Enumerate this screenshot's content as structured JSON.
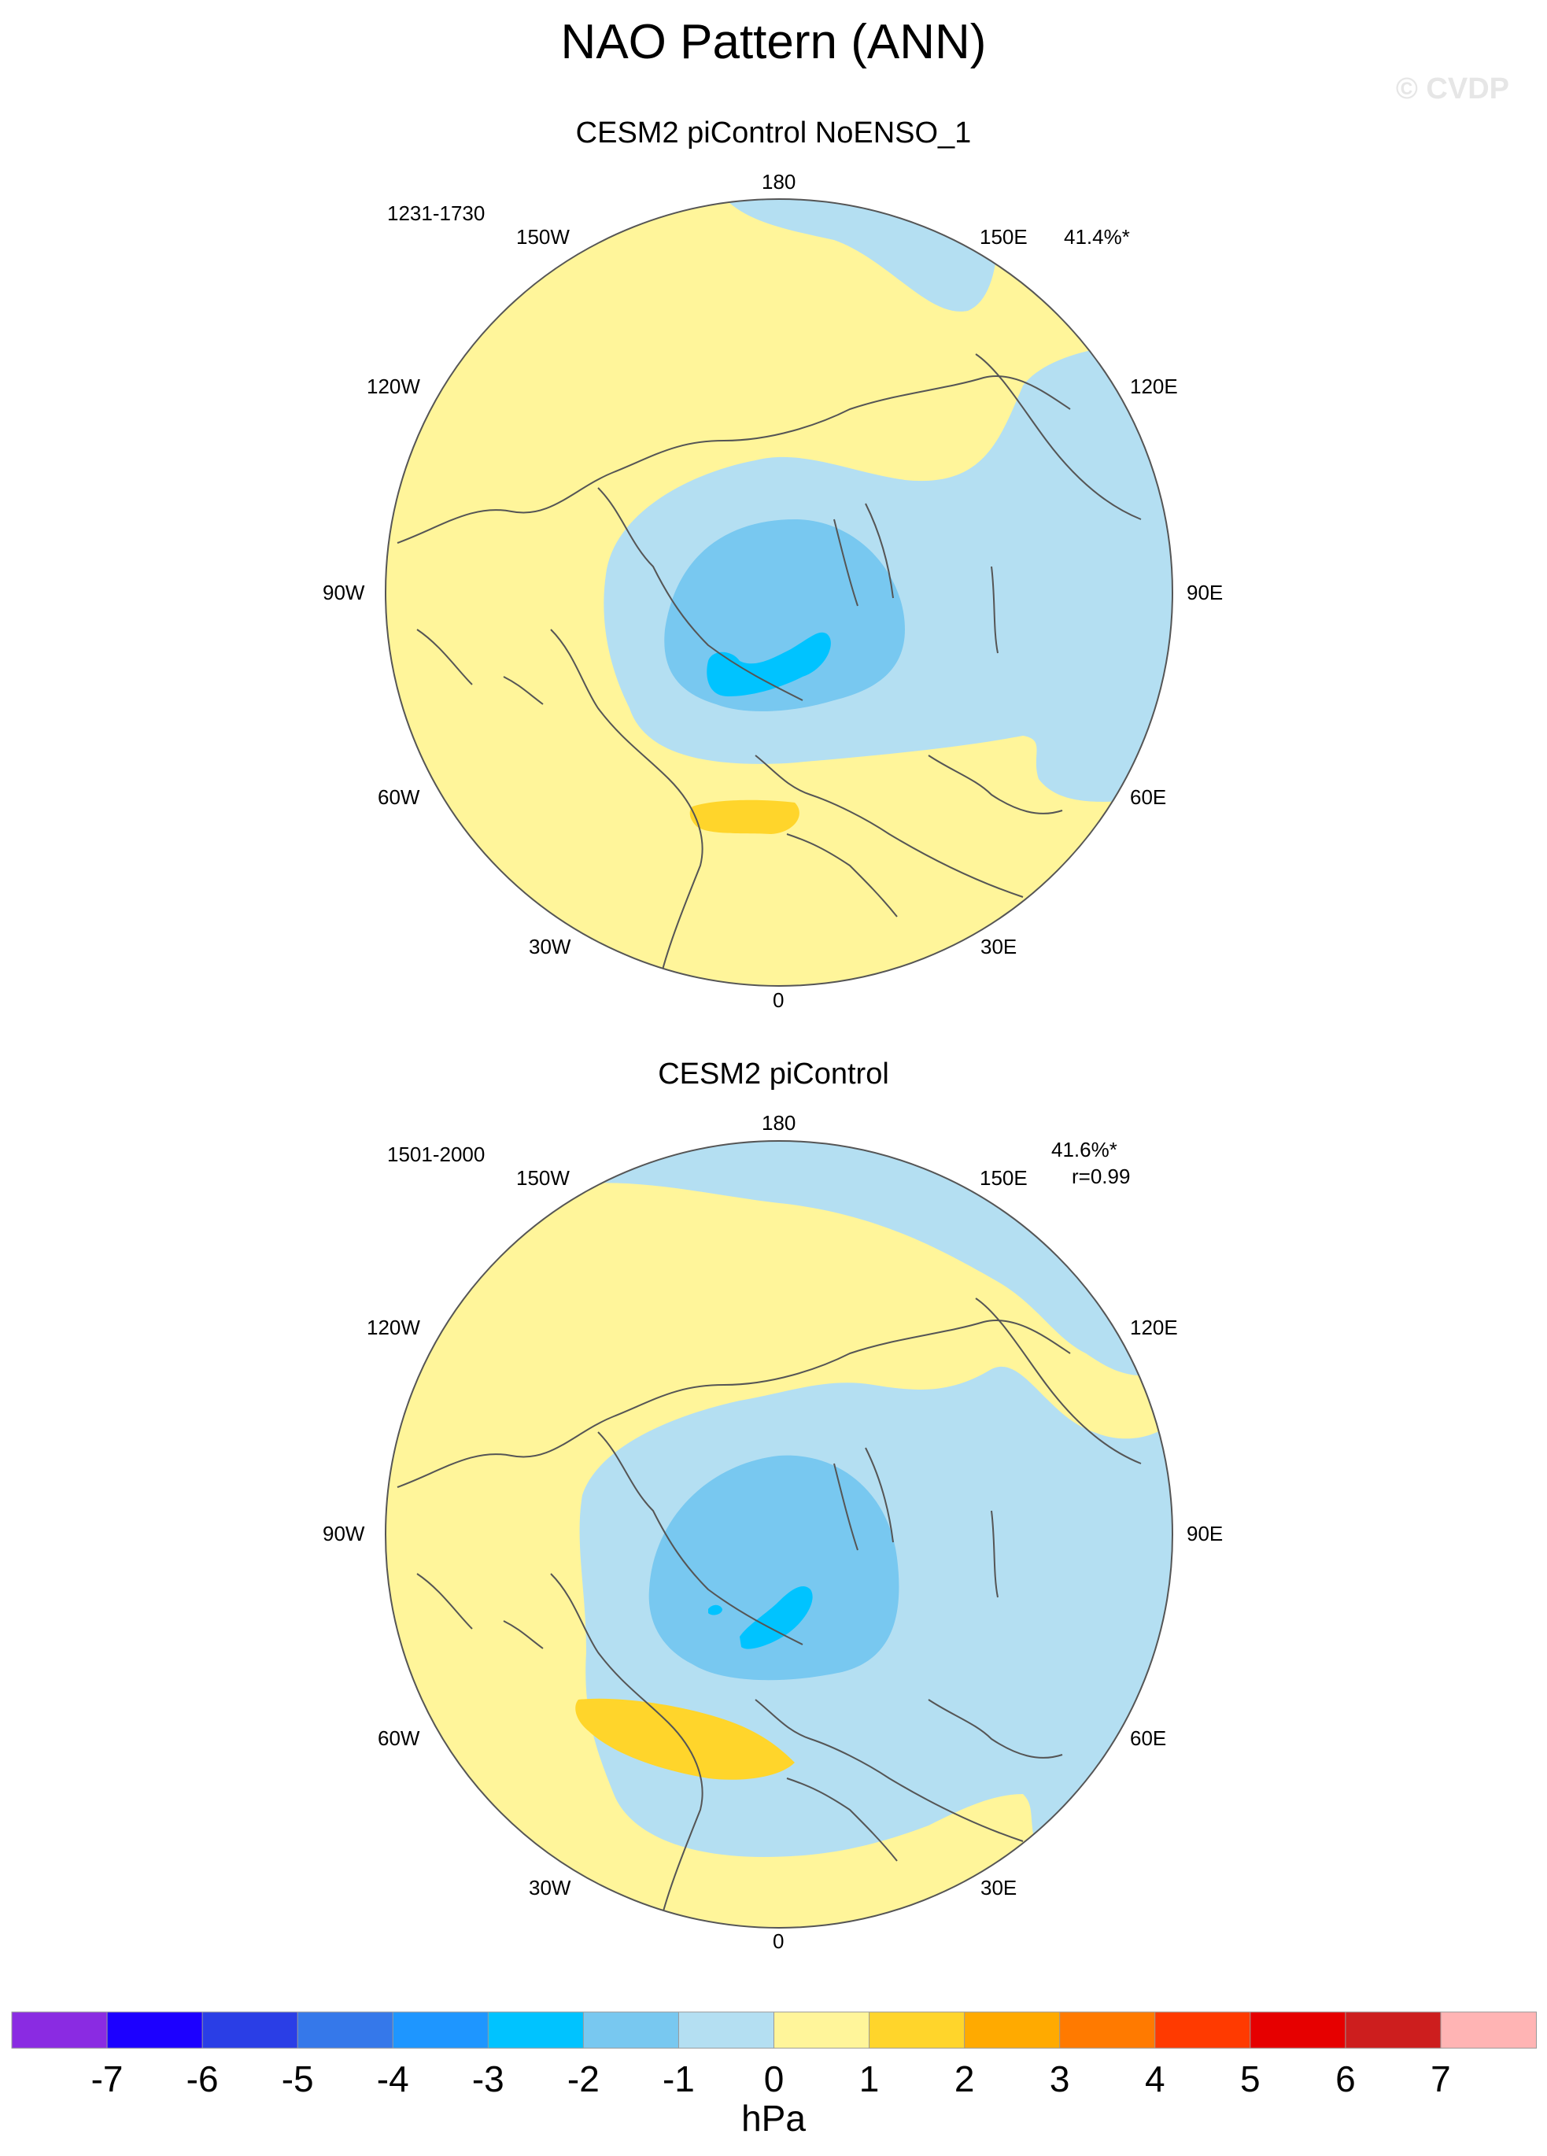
{
  "title": "NAO Pattern (ANN)",
  "watermark": "© CVDP",
  "panels": [
    {
      "title": "CESM2 piControl NoENSO_1",
      "period": "1231-1730",
      "pct_variance": "41.4%*",
      "correlation": "",
      "lon_labels": {
        "n180": "180",
        "w150": "150W",
        "e150": "150E",
        "w120": "120W",
        "e120": "120E",
        "w90": "90W",
        "e90": "90E",
        "w60": "60W",
        "e60": "60E",
        "w30": "30W",
        "e30": "30E",
        "zero": "0"
      }
    },
    {
      "title": "CESM2 piControl",
      "period": "1501-2000",
      "pct_variance": "41.6%*",
      "correlation": "r=0.99",
      "lon_labels": {
        "n180": "180",
        "w150": "150W",
        "e150": "150E",
        "w120": "120W",
        "e120": "120E",
        "w90": "90W",
        "e90": "90E",
        "w60": "60W",
        "e60": "60E",
        "w30": "30W",
        "e30": "30E",
        "zero": "0"
      }
    }
  ],
  "colorbar": {
    "unit": "hPa",
    "ticks": [
      "-7",
      "-6",
      "-5",
      "-4",
      "-3",
      "-2",
      "-1",
      "0",
      "1",
      "2",
      "3",
      "4",
      "5",
      "6",
      "7"
    ],
    "colors": [
      "#8a2be2",
      "#1c00ff",
      "#2a3ee6",
      "#3578ea",
      "#1e96ff",
      "#00c3ff",
      "#78c8f0",
      "#b4dff2",
      "#fff59a",
      "#ffd52b",
      "#ffaa00",
      "#ff7a00",
      "#ff3a00",
      "#e60000",
      "#cd1e1e",
      "#ffb4b4"
    ]
  },
  "fill_colors": {
    "positive_0_1": "#fff59a",
    "positive_1_2": "#ffd52b",
    "negative_0_1": "#b4dff2",
    "negative_1_2": "#78c8f0",
    "negative_2_3": "#00c3ff",
    "coastline": "#555555"
  }
}
